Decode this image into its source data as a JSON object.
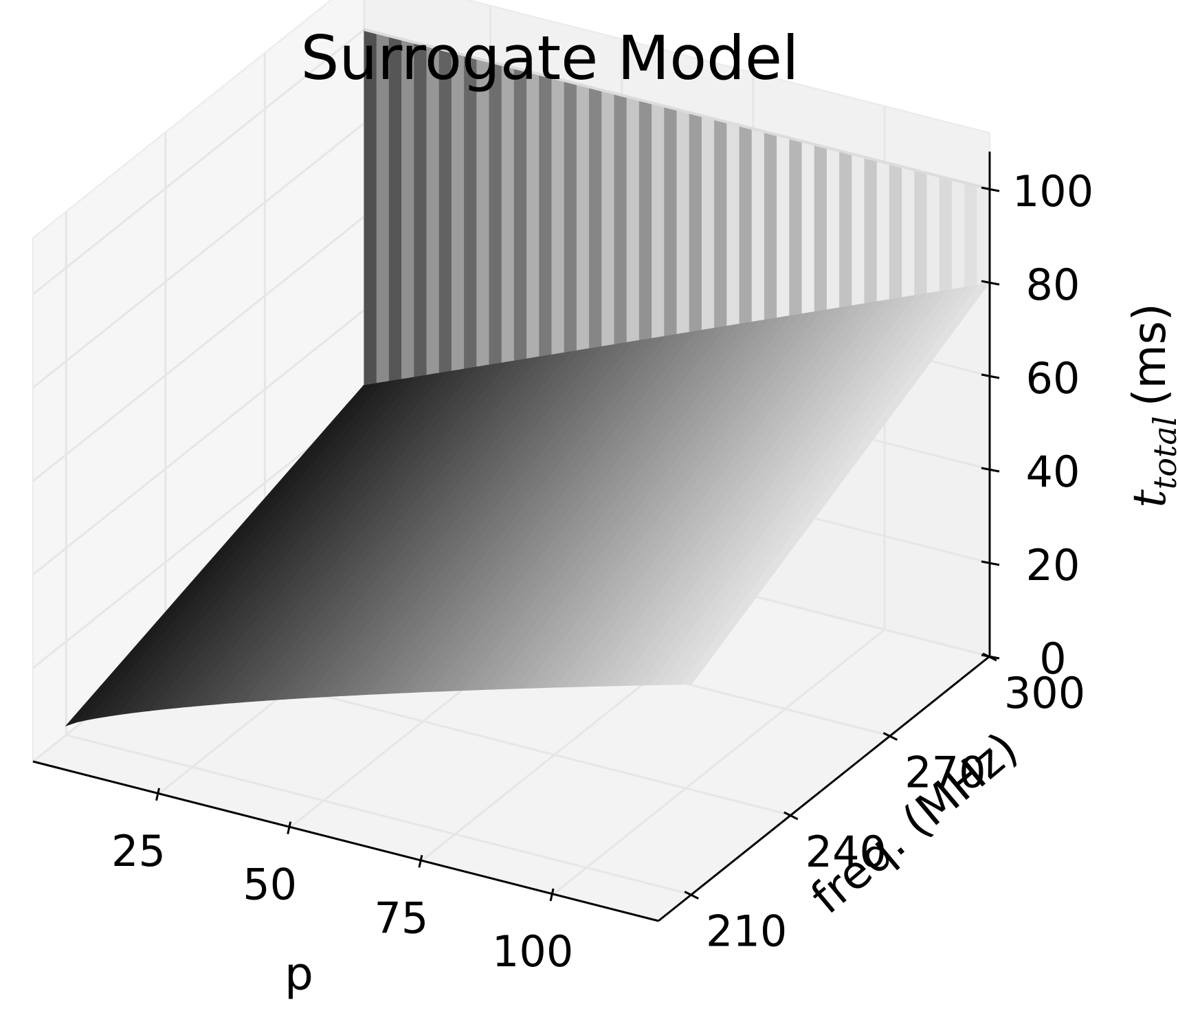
{
  "chart_data": {
    "type": "surface3d",
    "title": "Surrogate Model",
    "xlabel": "p",
    "ylabel": "freq. (MHz)",
    "zlabel_main": "t",
    "zlabel_sub": "total",
    "zlabel_unit": "(ms)",
    "x_ticks": [
      25,
      50,
      75,
      100
    ],
    "y_ticks": [
      210,
      240,
      270,
      300
    ],
    "z_ticks": [
      0,
      20,
      40,
      60,
      80,
      100
    ],
    "xlim": [
      1,
      120
    ],
    "ylim": [
      200,
      300
    ],
    "zlim": [
      0,
      100
    ],
    "grid": true,
    "colormap": "gray",
    "surface": {
      "description_values": {
        "low_sheet_z_at_p1": [
          2,
          24
        ],
        "low_sheet_z_at_p120": [
          45,
          80
        ],
        "freq_of_walls_start": 210,
        "wall_height_z": 100
      },
      "front_edge_freq": 210,
      "back_edge_freq": 300,
      "z_at_p_min_freq_min": 2,
      "z_at_p_max_freq_min": 45,
      "z_at_p_min_freq_max": 24,
      "z_at_p_max_freq_max": 80,
      "wall_top_z": 100,
      "wall_count": 50
    },
    "pane_color": "#f2f2f2",
    "grid_color": "#e6e6e6"
  }
}
